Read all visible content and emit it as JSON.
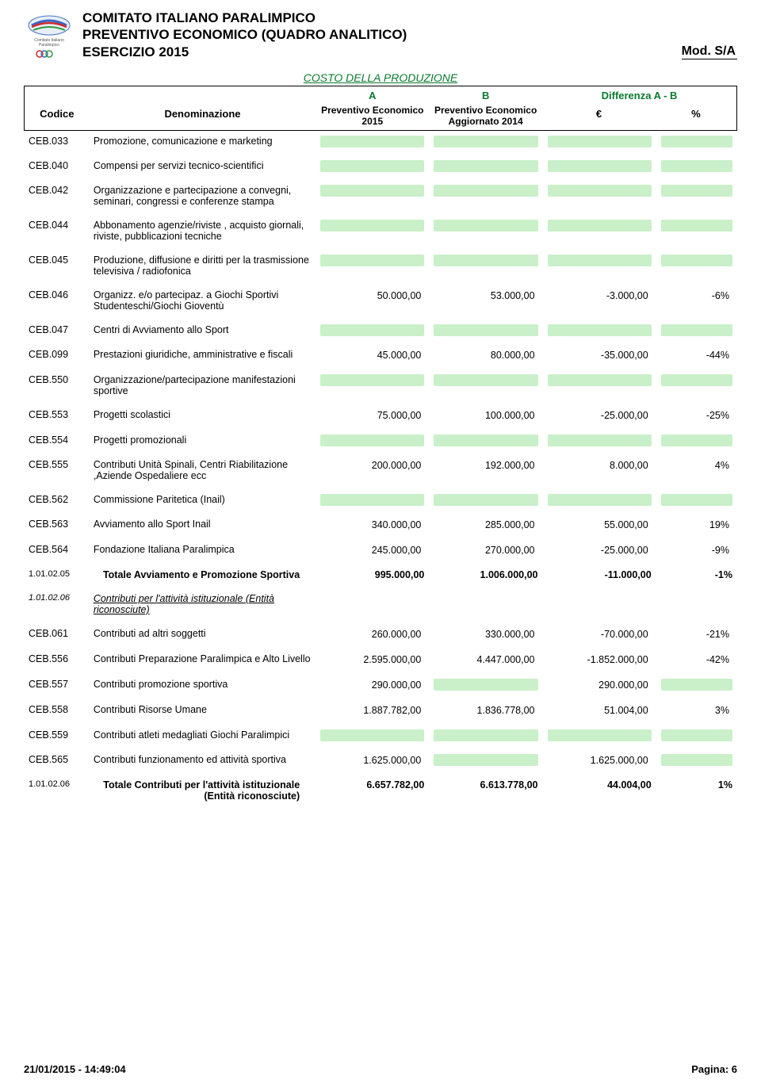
{
  "header": {
    "line1": "COMITATO ITALIANO PARALIMPICO",
    "line2": "PREVENTIVO ECONOMICO (QUADRO ANALITICO)",
    "line3": "ESERCIZIO 2015",
    "mod": "Mod. S/A"
  },
  "section_title": "COSTO DELLA PRODUZIONE",
  "columns": {
    "codice": "Codice",
    "denom": "Denominazione",
    "a": "A",
    "b": "B",
    "a_sub": "Preventivo Economico 2015",
    "b_sub": "Preventivo Economico Aggiornato 2014",
    "diff": "Differenza A - B",
    "eur": "€",
    "pct": "%"
  },
  "rows": [
    {
      "code": "CEB.033",
      "desc": "Promozione, comunicazione e marketing",
      "a": "",
      "b": "",
      "d": "",
      "p": "",
      "hl": true
    },
    {
      "code": "CEB.040",
      "desc": "Compensi per servizi tecnico-scientifici",
      "a": "",
      "b": "",
      "d": "",
      "p": "",
      "hl": true
    },
    {
      "code": "CEB.042",
      "desc": "Organizzazione e partecipazione a convegni, seminari, congressi e conferenze stampa",
      "a": "",
      "b": "",
      "d": "",
      "p": "",
      "hl": true
    },
    {
      "code": "CEB.044",
      "desc": "Abbonamento agenzie/riviste , acquisto giornali, riviste, pubblicazioni tecniche",
      "a": "",
      "b": "",
      "d": "",
      "p": "",
      "hl": true
    },
    {
      "code": "CEB.045",
      "desc": "Produzione, diffusione e diritti per la trasmissione televisiva / radiofonica",
      "a": "",
      "b": "",
      "d": "",
      "p": "",
      "hl": true
    },
    {
      "code": "CEB.046",
      "desc": "Organizz. e/o partecipaz. a Giochi Sportivi Studenteschi/Giochi Gioventù",
      "a": "50.000,00",
      "b": "53.000,00",
      "d": "-3.000,00",
      "p": "-6%",
      "hl": false
    },
    {
      "code": "CEB.047",
      "desc": "Centri di Avviamento allo Sport",
      "a": "",
      "b": "",
      "d": "",
      "p": "",
      "hl": true
    },
    {
      "code": "CEB.099",
      "desc": "Prestazioni giuridiche, amministrative e fiscali",
      "a": "45.000,00",
      "b": "80.000,00",
      "d": "-35.000,00",
      "p": "-44%",
      "hl": false
    },
    {
      "code": "CEB.550",
      "desc": "Organizzazione/partecipazione manifestazioni sportive",
      "a": "",
      "b": "",
      "d": "",
      "p": "",
      "hl": true
    },
    {
      "code": "CEB.553",
      "desc": "Progetti scolastici",
      "a": "75.000,00",
      "b": "100.000,00",
      "d": "-25.000,00",
      "p": "-25%",
      "hl": false
    },
    {
      "code": "CEB.554",
      "desc": "Progetti promozionali",
      "a": "",
      "b": "",
      "d": "",
      "p": "",
      "hl": true
    },
    {
      "code": "CEB.555",
      "desc": "Contributi Unità Spinali, Centri Riabilitazione ,Aziende Ospedaliere ecc",
      "a": "200.000,00",
      "b": "192.000,00",
      "d": "8.000,00",
      "p": "4%",
      "hl": false
    },
    {
      "code": "CEB.562",
      "desc": "Commissione Paritetica (Inail)",
      "a": "",
      "b": "",
      "d": "",
      "p": "",
      "hl": true
    },
    {
      "code": "CEB.563",
      "desc": "Avviamento allo Sport Inail",
      "a": "340.000,00",
      "b": "285.000,00",
      "d": "55.000,00",
      "p": "19%",
      "hl": false
    },
    {
      "code": "CEB.564",
      "desc": "Fondazione Italiana Paralimpica",
      "a": "245.000,00",
      "b": "270.000,00",
      "d": "-25.000,00",
      "p": "-9%",
      "hl": false
    }
  ],
  "total1": {
    "code": "1.01.02.05",
    "desc": "Totale Avviamento e Promozione Sportiva",
    "a": "995.000,00",
    "b": "1.006.000,00",
    "d": "-11.000,00",
    "p": "-1%"
  },
  "subhead": {
    "code": "1.01.02.06",
    "desc": "Contributi per l'attività istituzionale (Entità riconosciute)"
  },
  "rows2": [
    {
      "code": "CEB.061",
      "desc": "Contributi ad altri soggetti",
      "a": "260.000,00",
      "b": "330.000,00",
      "d": "-70.000,00",
      "p": "-21%",
      "hl": false
    },
    {
      "code": "CEB.556",
      "desc": "Contributi Preparazione Paralimpica e Alto Livello",
      "a": "2.595.000,00",
      "b": "4.447.000,00",
      "d": "-1.852.000,00",
      "p": "-42%",
      "hl": false
    },
    {
      "code": "CEB.557",
      "desc": "Contributi promozione sportiva",
      "a": "290.000,00",
      "b": "",
      "d": "290.000,00",
      "p": "",
      "hl": false,
      "hlb": true,
      "hlp": true
    },
    {
      "code": "CEB.558",
      "desc": "Contributi Risorse Umane",
      "a": "1.887.782,00",
      "b": "1.836.778,00",
      "d": "51.004,00",
      "p": "3%",
      "hl": false
    },
    {
      "code": "CEB.559",
      "desc": "Contributi atleti medagliati Giochi Paralimpici",
      "a": "",
      "b": "",
      "d": "",
      "p": "",
      "hl": true
    },
    {
      "code": "CEB.565",
      "desc": "Contributi funzionamento ed attività sportiva",
      "a": "1.625.000,00",
      "b": "",
      "d": "1.625.000,00",
      "p": "",
      "hl": false,
      "hlb": true,
      "hlp": true
    }
  ],
  "total2": {
    "code": "1.01.02.06",
    "desc": "Totale Contributi per l'attività istituzionale (Entità riconosciute)",
    "a": "6.657.782,00",
    "b": "6.613.778,00",
    "d": "44.004,00",
    "p": "1%"
  },
  "footer": {
    "left": "21/01/2015 - 14:49:04",
    "right": "Pagina: 6"
  },
  "colors": {
    "green": "#0b7a2e",
    "highlight": "#c9f0c9"
  }
}
